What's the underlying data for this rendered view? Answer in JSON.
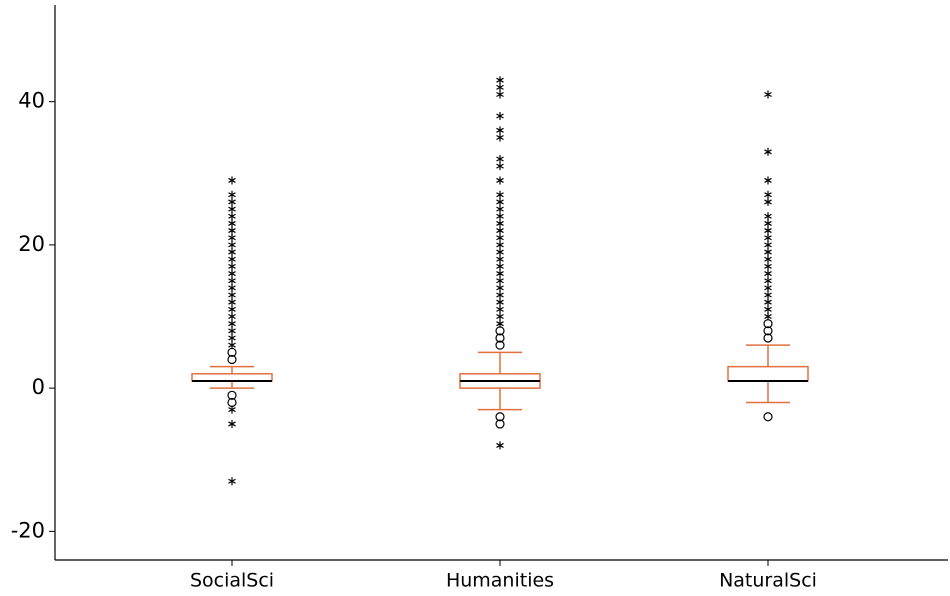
{
  "chart_data": {
    "type": "box",
    "categories": [
      "SocialSci",
      "Humanities",
      "NaturalSci"
    ],
    "boxes": [
      {
        "whisker_low": 0,
        "q1": 1,
        "median": 1,
        "q3": 2,
        "whisker_high": 3
      },
      {
        "whisker_low": -3,
        "q1": 0,
        "median": 1,
        "q3": 2,
        "whisker_high": 5
      },
      {
        "whisker_low": -2,
        "q1": 1,
        "median": 1,
        "q3": 3,
        "whisker_high": 6
      }
    ],
    "outliers": [
      [
        4,
        5,
        -1,
        -2
      ],
      [
        6,
        7,
        8,
        -4,
        -5
      ],
      [
        7,
        8,
        9,
        -4
      ]
    ],
    "extremes": [
      [
        -13,
        -5,
        -3,
        6,
        7,
        8,
        9,
        10,
        11,
        12,
        13,
        14,
        15,
        16,
        17,
        18,
        19,
        20,
        21,
        22,
        23,
        24,
        25,
        26,
        27,
        29
      ],
      [
        -8,
        9,
        10,
        11,
        12,
        13,
        14,
        15,
        16,
        17,
        18,
        19,
        20,
        21,
        22,
        23,
        24,
        25,
        26,
        27,
        29,
        31,
        32,
        35,
        36,
        38,
        41,
        42,
        43
      ],
      [
        10,
        11,
        12,
        13,
        14,
        15,
        16,
        17,
        18,
        19,
        20,
        21,
        22,
        23,
        24,
        26,
        27,
        29,
        33,
        41
      ]
    ],
    "color": "#e0703c",
    "median_color": "#000000",
    "ylim": [
      -24,
      53.5
    ],
    "yticks": [
      -20,
      0,
      20,
      40
    ]
  }
}
